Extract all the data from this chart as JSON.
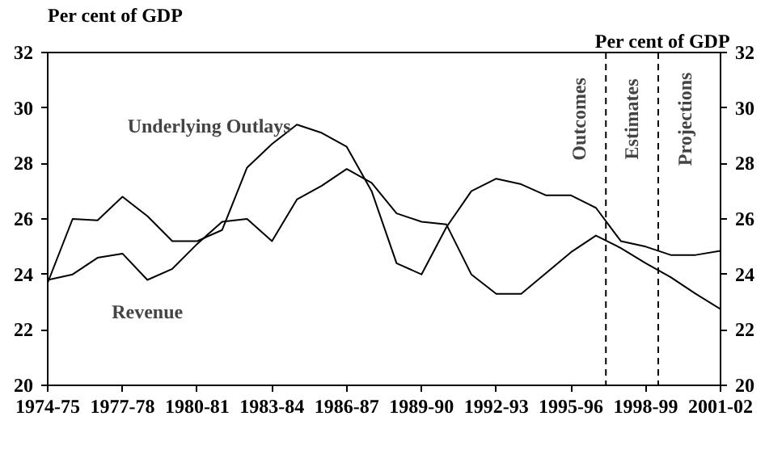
{
  "chart_data": {
    "type": "line",
    "ylabel": "Per cent of GDP",
    "y2label": "Per cent of GDP",
    "categories": [
      "1974-75",
      null,
      null,
      "1977-78",
      null,
      null,
      "1980-81",
      null,
      null,
      "1983-84",
      null,
      null,
      "1986-87",
      null,
      null,
      "1989-90",
      null,
      null,
      "1992-93",
      null,
      null,
      "1995-96",
      null,
      null,
      "1998-99",
      null,
      null,
      "2001-02"
    ],
    "series": [
      {
        "color": "#000000",
        "values": [
          23.7,
          26.0,
          25.95,
          26.8,
          26.1,
          25.2,
          25.2,
          25.6,
          27.85,
          28.7,
          29.4,
          29.1,
          28.6,
          27.0,
          24.4,
          24.0,
          25.7,
          27.0,
          27.45,
          27.25,
          26.85,
          26.85,
          26.4,
          25.2,
          25.0,
          24.7,
          24.7,
          24.85
        ]
      },
      {
        "color": "#000000",
        "values": [
          23.8,
          24.0,
          24.6,
          24.75,
          23.8,
          24.2,
          25.1,
          25.9,
          26.0,
          25.2,
          26.7,
          27.2,
          27.8,
          27.3,
          26.2,
          25.9,
          25.8,
          24.0,
          23.3,
          23.3,
          24.05,
          24.8,
          25.4,
          24.95,
          24.4,
          23.9,
          23.3,
          22.75
        ]
      }
    ],
    "ylim": [
      20,
      32
    ],
    "yticks": [
      20,
      22,
      24,
      26,
      28,
      30,
      32
    ],
    "y2lim": [
      20,
      32
    ],
    "y2ticks": [
      20,
      22,
      24,
      26,
      28,
      30,
      32
    ],
    "annotations": [
      "Underlying Outlays",
      "Revenue",
      "Outcomes",
      "Estimates",
      "Projections"
    ],
    "grid": false
  }
}
